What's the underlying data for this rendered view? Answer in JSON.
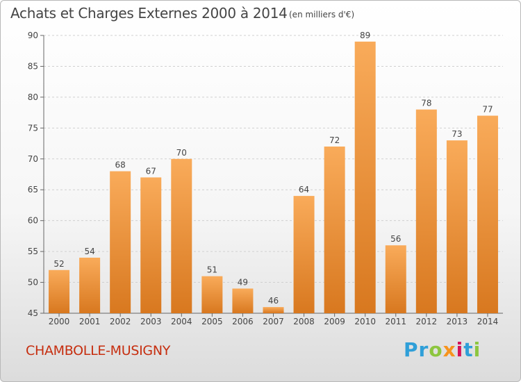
{
  "title": "Achats et Charges Externes 2000 à 2014",
  "subtitle": "(en milliers d'€)",
  "commune": "CHAMBOLLE-MUSIGNY",
  "logo": {
    "letters": [
      "P",
      "r",
      "o",
      "x",
      "i",
      "t",
      "i"
    ],
    "colors": [
      "#2f9fd8",
      "#2f9fd8",
      "#8dc63f",
      "#f7941d",
      "#d4145a",
      "#2f9fd8",
      "#8dc63f"
    ]
  },
  "colors": {
    "bar_top": "#f9ab5a",
    "bar_bottom": "#d8781f",
    "grid": "#d0d0d0"
  },
  "chart_data": {
    "type": "bar",
    "categories": [
      "2000",
      "2001",
      "2002",
      "2003",
      "2004",
      "2005",
      "2006",
      "2007",
      "2008",
      "2009",
      "2010",
      "2011",
      "2012",
      "2013",
      "2014"
    ],
    "values": [
      52,
      54,
      68,
      67,
      70,
      51,
      49,
      46,
      64,
      72,
      89,
      56,
      78,
      73,
      77
    ],
    "ylim": [
      45,
      90
    ],
    "yticks": [
      45,
      50,
      55,
      60,
      65,
      70,
      75,
      80,
      85,
      90
    ],
    "grid": true
  }
}
